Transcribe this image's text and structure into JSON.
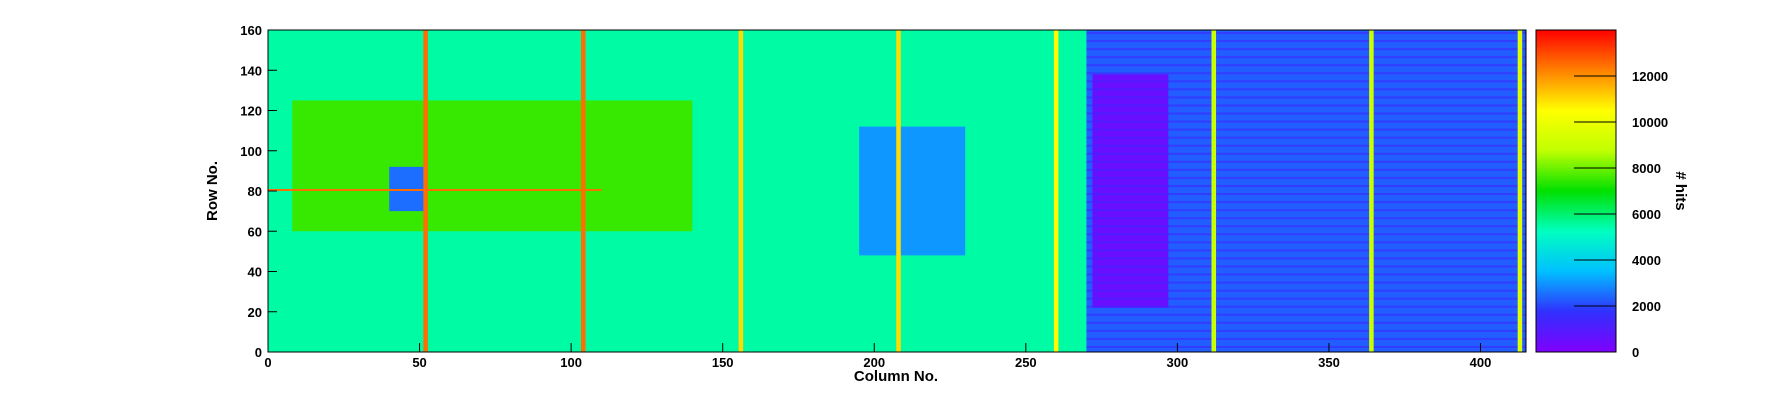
{
  "chart_data": {
    "type": "heatmap",
    "xlabel": "Column No.",
    "ylabel": "Row No.",
    "zlabel": "# hits",
    "xlim": [
      0,
      415
    ],
    "ylim": [
      0,
      160
    ],
    "zlim": [
      0,
      14000
    ],
    "x_ticks": [
      0,
      50,
      100,
      150,
      200,
      250,
      300,
      350,
      400
    ],
    "y_ticks": [
      0,
      20,
      40,
      60,
      80,
      100,
      120,
      140,
      160
    ],
    "z_ticks": [
      0,
      2000,
      4000,
      6000,
      8000,
      10000,
      12000
    ],
    "colormap": [
      "#8000ff",
      "#3030ff",
      "#00c0ff",
      "#00ffc0",
      "#00e000",
      "#c0ff00",
      "#ffff00",
      "#ff8000",
      "#ff0000"
    ],
    "regions": [
      {
        "x": [
          0,
          270
        ],
        "y": [
          0,
          160
        ],
        "value": 5500
      },
      {
        "x": [
          8,
          140
        ],
        "y": [
          60,
          125
        ],
        "value": 7500
      },
      {
        "x": [
          270,
          415
        ],
        "y": [
          0,
          160
        ],
        "value": 2300
      },
      {
        "x": [
          272,
          297
        ],
        "y": [
          22,
          138
        ],
        "value": 500
      },
      {
        "x": [
          195,
          230
        ],
        "y": [
          48,
          112
        ],
        "value": 3000
      },
      {
        "x": [
          40,
          52
        ],
        "y": [
          70,
          92
        ],
        "value": 2500
      }
    ],
    "hot_columns": [
      {
        "x": 52,
        "value": 12500
      },
      {
        "x": 104,
        "value": 12500
      },
      {
        "x": 156,
        "value": 11000
      },
      {
        "x": 208,
        "value": 11000
      },
      {
        "x": 260,
        "value": 10500
      },
      {
        "x": 312,
        "value": 9000
      },
      {
        "x": 364,
        "value": 9000
      },
      {
        "x": 413,
        "value": 9500
      }
    ],
    "hot_rows": [
      {
        "y": 80,
        "x": [
          0,
          110
        ],
        "value": 12500
      }
    ]
  }
}
